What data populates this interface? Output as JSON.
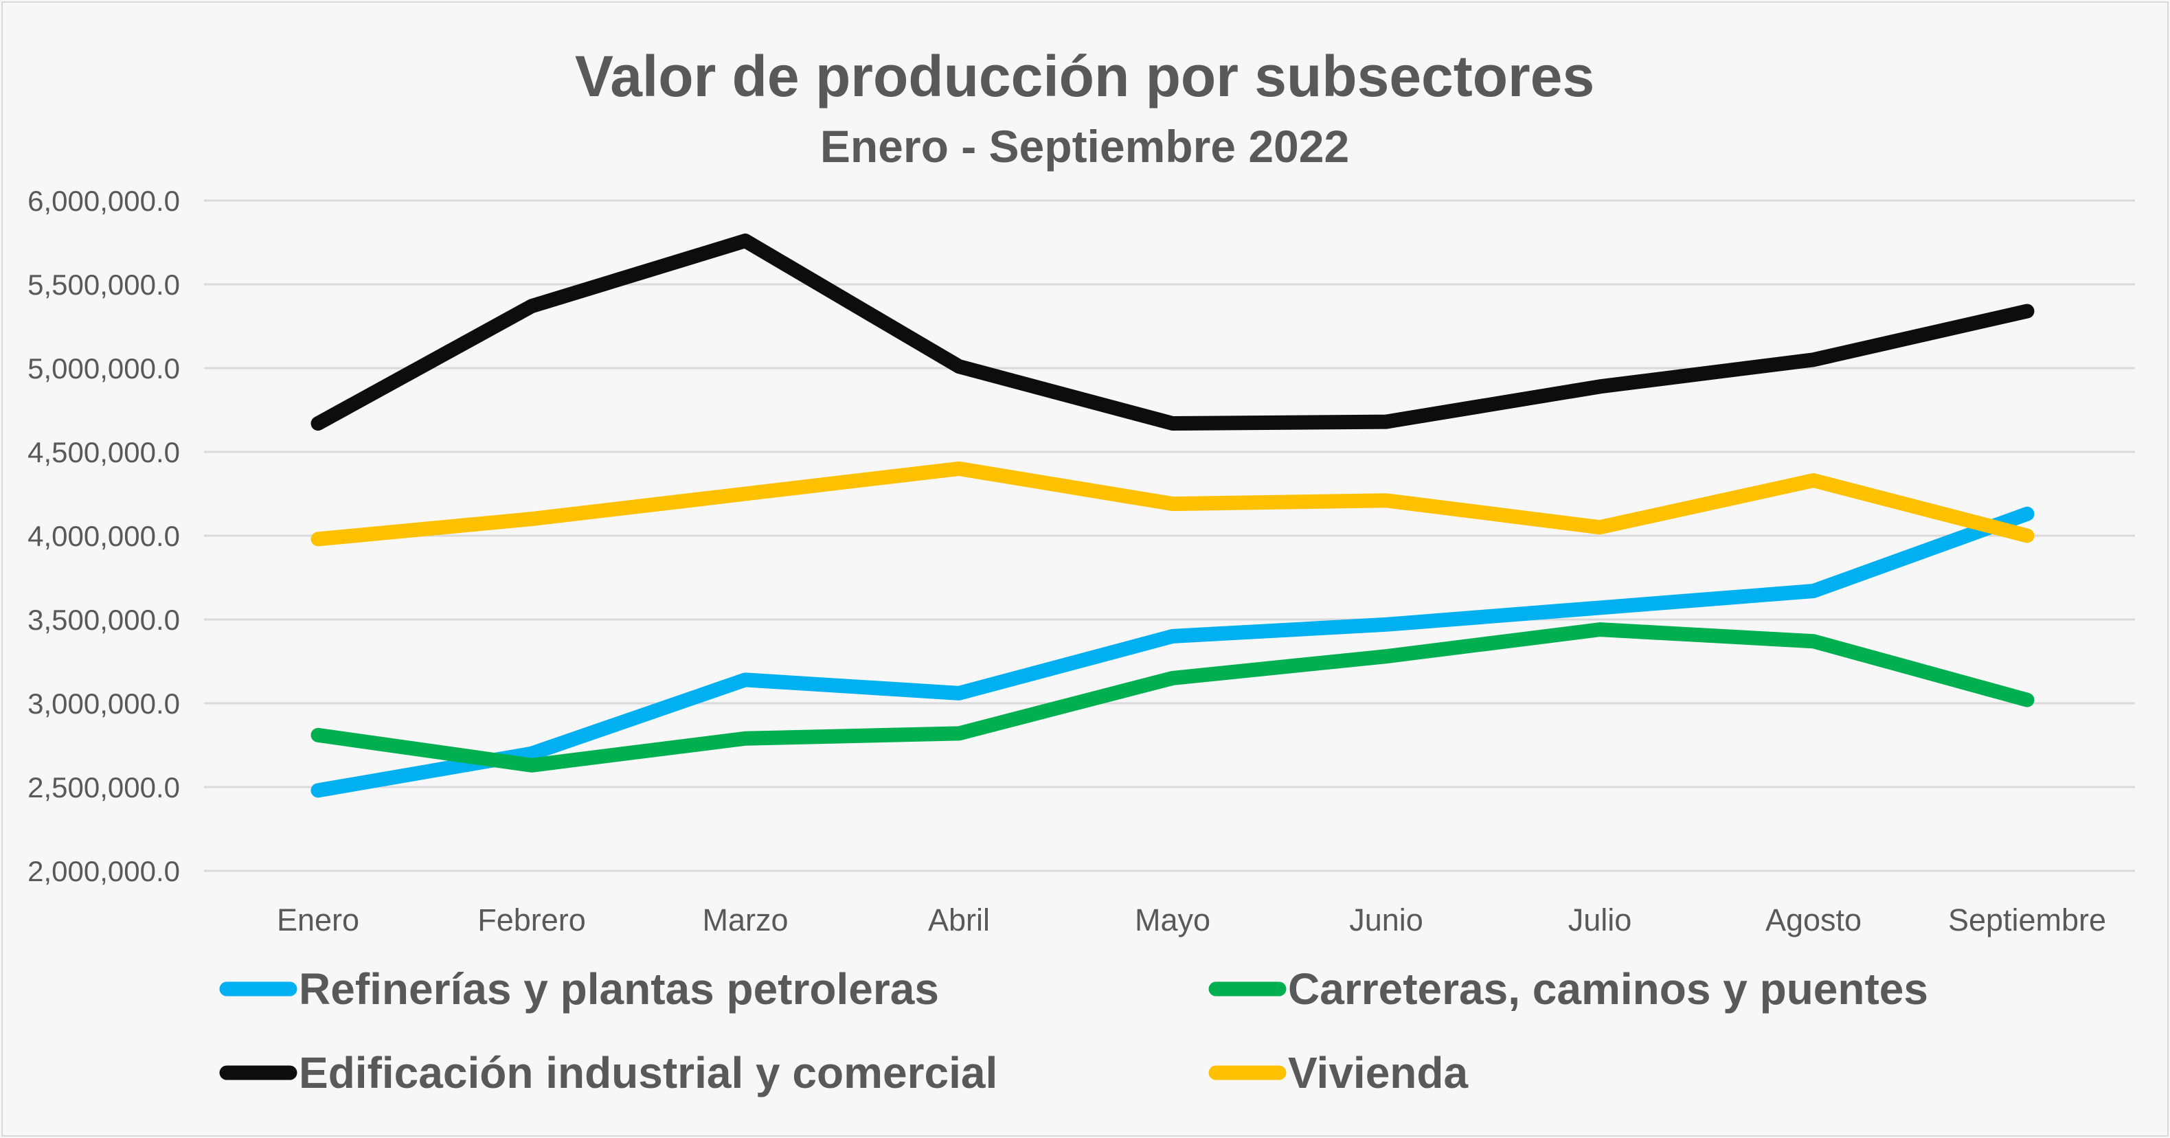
{
  "chart_data": {
    "type": "line",
    "title": "Valor de producción por subsectores",
    "subtitle": "Enero - Septiembre 2022",
    "categories": [
      "Enero",
      "Febrero",
      "Marzo",
      "Abril",
      "Mayo",
      "Junio",
      "Julio",
      "Agosto",
      "Septiembre"
    ],
    "ylim": [
      2000000,
      6000000
    ],
    "yticks": [
      2000000,
      2500000,
      3000000,
      3500000,
      4000000,
      4500000,
      5000000,
      5500000,
      6000000
    ],
    "ytick_labels": [
      "2,000,000.0",
      "2,500,000.0",
      "3,000,000.0",
      "3,500,000.0",
      "4,000,000.0",
      "4,500,000.0",
      "5,000,000.0",
      "5,500,000.0",
      "6,000,000.0"
    ],
    "grid": true,
    "legend_position": "bottom",
    "series": [
      {
        "name": "Refinerías y plantas petroleras",
        "color": "#00b0f0",
        "values": [
          2480000,
          2700000,
          3140000,
          3060000,
          3400000,
          3470000,
          3570000,
          3670000,
          4130000
        ]
      },
      {
        "name": "Carreteras, caminos y puentes",
        "color": "#00b050",
        "values": [
          2810000,
          2630000,
          2790000,
          2820000,
          3150000,
          3280000,
          3440000,
          3370000,
          3020000
        ]
      },
      {
        "name": "Edificación industrial y comercial",
        "color": "#0d0d0d",
        "values": [
          4670000,
          5370000,
          5760000,
          5010000,
          4670000,
          4680000,
          4890000,
          5050000,
          5340000
        ]
      },
      {
        "name": "Vivienda",
        "color": "#ffc000",
        "values": [
          3980000,
          4100000,
          4250000,
          4400000,
          4190000,
          4210000,
          4050000,
          4330000,
          4000000
        ]
      }
    ]
  }
}
